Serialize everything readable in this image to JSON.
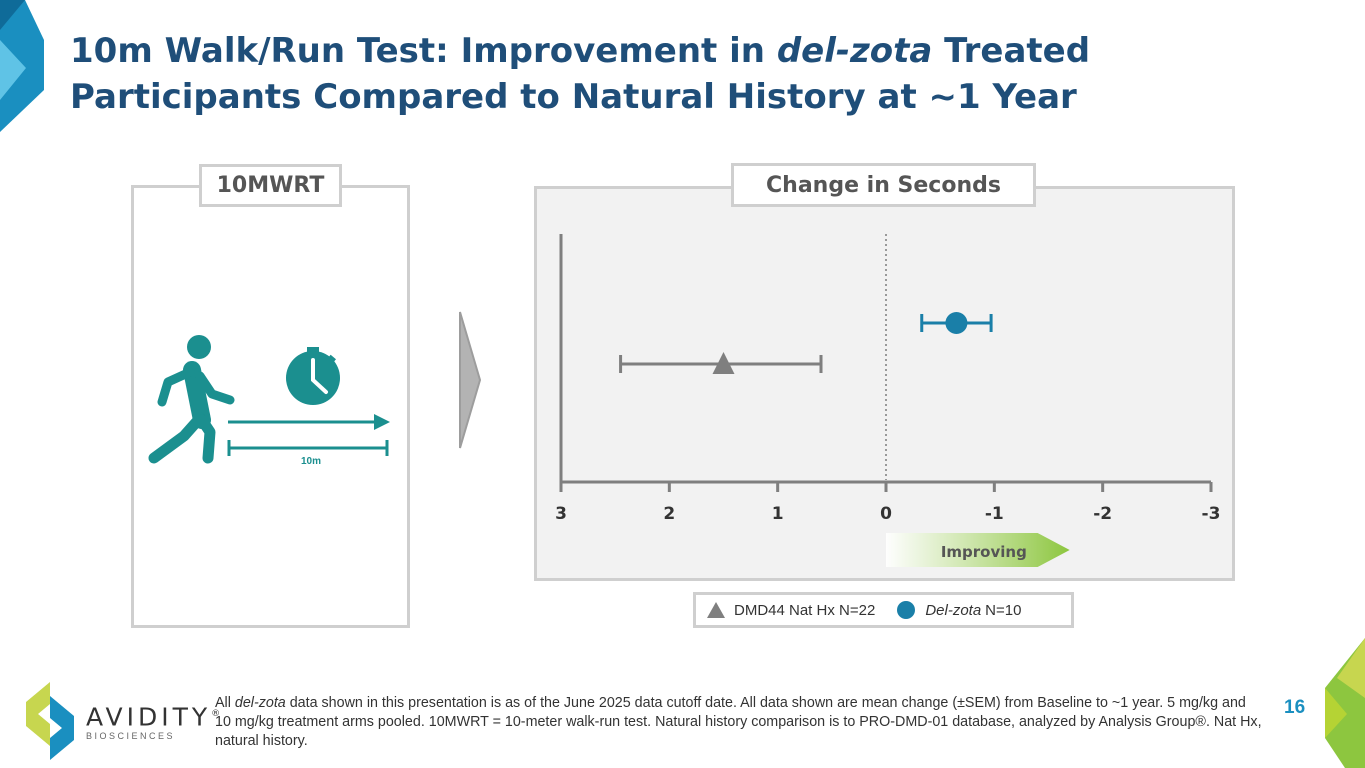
{
  "slide": {
    "title_pre": "10m Walk/Run Test: Improvement in ",
    "title_italic": "del-zota",
    "title_post": " Treated Participants Compared to Natural History at ~1 Year",
    "page_number": "16"
  },
  "left_panel": {
    "label": "10MWRT",
    "distance_label": "10m"
  },
  "right_panel": {
    "label": "Change in Seconds"
  },
  "chart_data": {
    "type": "scatter",
    "title": "Change in Seconds",
    "xlabel": "",
    "ylabel": "",
    "xlim": [
      3,
      -3
    ],
    "xaxis_reversed": true,
    "x_ticks": [
      3,
      2,
      1,
      0,
      -1,
      -2,
      -3
    ],
    "x_tick_labels": [
      "3",
      "2",
      "1",
      "0",
      "-1",
      "-2",
      "-3"
    ],
    "reference_line": 0,
    "series": [
      {
        "name": "DMD44 Nat Hx N=22",
        "marker": "triangle",
        "color": "#7f7f7f",
        "mean": 1.5,
        "err_low": 2.45,
        "err_high": 0.6
      },
      {
        "name": "Del-zota N=10",
        "marker": "circle",
        "color": "#1a7fa8",
        "mean": -0.65,
        "err_low": -0.33,
        "err_high": -0.97
      }
    ],
    "annotation": {
      "text": "Improving",
      "direction": "toward negative"
    }
  },
  "legend": {
    "nathx_label": "DMD44 Nat Hx N=22",
    "delzota_italic": "Del-zota",
    "delzota_suffix": "N=10"
  },
  "footnote": {
    "p1": "All ",
    "p2": "del-zota",
    "p3": " data shown in this presentation is as of the June 2025 data cutoff date. All data shown are mean change (±SEM) from Baseline to ~1 year. 5 mg/kg and 10 mg/kg treatment arms pooled. 10MWRT = 10-meter walk-run test. Natural history comparison is to PRO-DMD-01 database, analyzed by Analysis Group®. Nat Hx, natural history."
  },
  "logo": {
    "word": "AVIDITY",
    "sub": "BIOSCIENCES",
    "reg": "®"
  },
  "colors": {
    "title": "#1f4e79",
    "teal": "#1b8f8f",
    "delzota": "#1a7fa8",
    "nathx": "#7f7f7f",
    "improving_end": "#8dc63f",
    "page_number": "#1a8fc0"
  }
}
